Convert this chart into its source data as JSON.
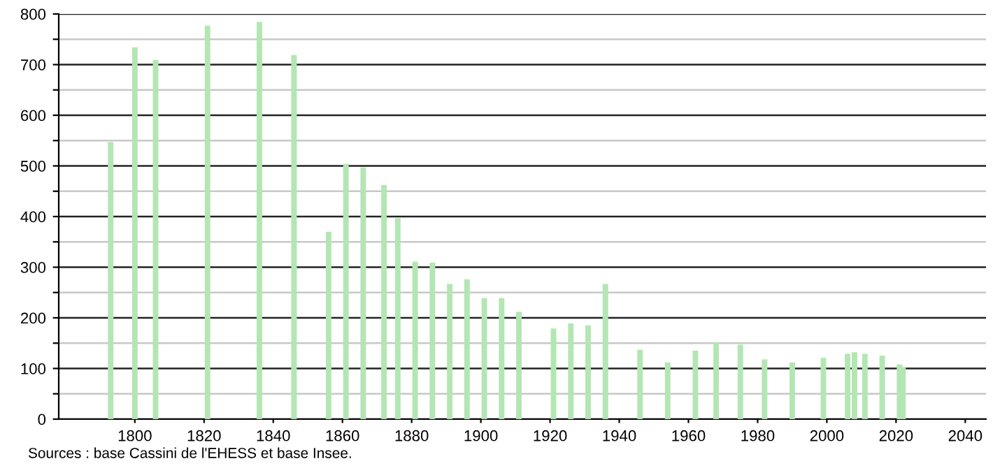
{
  "chart_data": {
    "type": "bar",
    "x": [
      1793,
      1800,
      1806,
      1821,
      1836,
      1846,
      1856,
      1861,
      1866,
      1872,
      1876,
      1881,
      1886,
      1891,
      1896,
      1901,
      1906,
      1911,
      1921,
      1926,
      1931,
      1936,
      1946,
      1954,
      1962,
      1968,
      1975,
      1982,
      1990,
      1999,
      2006,
      2008,
      2011,
      2016,
      2021,
      2022
    ],
    "values": [
      547,
      734,
      709,
      777,
      784,
      719,
      370,
      504,
      497,
      462,
      397,
      311,
      309,
      267,
      276,
      239,
      239,
      212,
      179,
      189,
      185,
      267,
      137,
      112,
      135,
      152,
      147,
      118,
      112,
      121,
      129,
      132,
      129,
      125,
      108,
      103
    ],
    "color": "#b3e6b3",
    "xlim": [
      1778,
      2046
    ],
    "xticks": [
      1800,
      1820,
      1840,
      1860,
      1880,
      1900,
      1920,
      1940,
      1960,
      1980,
      2000,
      2020,
      2040
    ],
    "ylim": [
      0,
      800
    ],
    "yticks": [
      0,
      {
        "value": 50,
        "label": null
      },
      100,
      {
        "value": 150,
        "label": null
      },
      200,
      {
        "value": 250,
        "label": null
      },
      300,
      {
        "value": 350,
        "label": null
      },
      400,
      {
        "value": 450,
        "label": null
      },
      500,
      {
        "value": 550,
        "label": null
      },
      600,
      {
        "value": 650,
        "label": null
      },
      700,
      {
        "value": 750,
        "label": null
      },
      800
    ],
    "grid": "y",
    "annotations": [
      "Sources : base Cassini de l'EHESS et base Insee."
    ]
  }
}
